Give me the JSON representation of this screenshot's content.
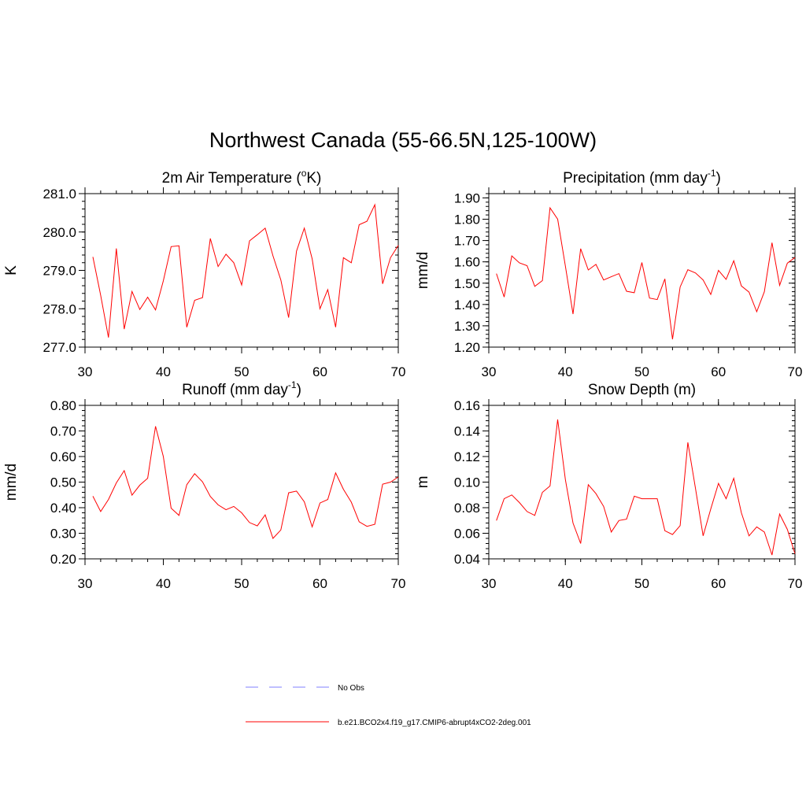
{
  "figure": {
    "title": "Northwest Canada (55-66.5N,125-100W)",
    "legend": [
      {
        "label": "No Obs",
        "color": "#9999ff",
        "style": "dashed"
      },
      {
        "label": "b.e21.BCO2x4.f19_g17.CMIP6-abrupt4xCO2-2deg.001",
        "color": "#ff0000",
        "style": "solid"
      }
    ]
  },
  "chart_data": [
    {
      "type": "line",
      "title": "2m Air Temperature (",
      "title_sup": "o",
      "title_tail": "K)",
      "ylabel": "K",
      "xlabel": "",
      "xlim": [
        30,
        70
      ],
      "ylim": [
        277.0,
        281.0
      ],
      "xticks": [
        30,
        40,
        50,
        60,
        70
      ],
      "yticks": [
        277.0,
        278.0,
        279.0,
        280.0,
        281.0
      ],
      "ytick_labels": [
        "277.0",
        "278.0",
        "279.0",
        "280.0",
        "281.0"
      ],
      "yminor": 0.2,
      "series": [
        {
          "name": "b.e21.BCO2x4.f19_g17.CMIP6-abrupt4xCO2-2deg.001",
          "color": "#ff0000",
          "x": [
            31,
            32,
            33,
            34,
            35,
            36,
            37,
            38,
            39,
            40,
            41,
            42,
            43,
            44,
            45,
            46,
            47,
            48,
            49,
            50,
            51,
            52,
            53,
            54,
            55,
            56,
            57,
            58,
            59,
            60,
            61,
            62,
            63,
            64,
            65,
            66,
            67,
            68,
            69,
            70
          ],
          "values": [
            279.35,
            278.35,
            277.25,
            279.57,
            277.47,
            278.45,
            277.98,
            278.3,
            277.97,
            278.73,
            279.62,
            279.64,
            277.52,
            278.22,
            278.29,
            279.83,
            279.1,
            279.42,
            279.2,
            278.62,
            279.77,
            279.93,
            280.1,
            279.38,
            278.75,
            277.77,
            279.5,
            280.1,
            279.3,
            278.0,
            278.5,
            277.52,
            279.33,
            279.2,
            280.19,
            280.28,
            280.71,
            278.65,
            279.33,
            279.65
          ]
        }
      ]
    },
    {
      "type": "line",
      "title": "Precipitation (mm day",
      "title_sup": "-1",
      "title_tail": ")",
      "ylabel": "mm/d",
      "xlabel": "",
      "xlim": [
        30,
        70
      ],
      "ylim": [
        1.2,
        1.92
      ],
      "xticks": [
        30,
        40,
        50,
        60,
        70
      ],
      "yticks": [
        1.2,
        1.3,
        1.4,
        1.5,
        1.6,
        1.7,
        1.8,
        1.9
      ],
      "ytick_labels": [
        "1.20",
        "1.30",
        "1.40",
        "1.50",
        "1.60",
        "1.70",
        "1.80",
        "1.90"
      ],
      "yminor": 0.02,
      "series": [
        {
          "name": "b.e21.BCO2x4.f19_g17.CMIP6-abrupt4xCO2-2deg.001",
          "color": "#ff0000",
          "x": [
            31,
            32,
            33,
            34,
            35,
            36,
            37,
            38,
            39,
            40,
            41,
            42,
            43,
            44,
            45,
            46,
            47,
            48,
            49,
            50,
            51,
            52,
            53,
            54,
            55,
            56,
            57,
            58,
            59,
            60,
            61,
            62,
            63,
            64,
            65,
            66,
            67,
            68,
            69,
            70
          ],
          "values": [
            1.545,
            1.435,
            1.628,
            1.595,
            1.582,
            1.485,
            1.512,
            1.853,
            1.8,
            1.58,
            1.355,
            1.662,
            1.562,
            1.588,
            1.515,
            1.53,
            1.545,
            1.462,
            1.455,
            1.597,
            1.43,
            1.423,
            1.52,
            1.237,
            1.482,
            1.563,
            1.548,
            1.515,
            1.447,
            1.56,
            1.518,
            1.605,
            1.487,
            1.458,
            1.366,
            1.46,
            1.69,
            1.49,
            1.594,
            1.62
          ]
        }
      ]
    },
    {
      "type": "line",
      "title": "Runoff (mm day",
      "title_sup": "-1",
      "title_tail": ")",
      "ylabel": "mm/d",
      "xlabel": "",
      "xlim": [
        30,
        70
      ],
      "ylim": [
        0.2,
        0.8
      ],
      "xticks": [
        30,
        40,
        50,
        60,
        70
      ],
      "yticks": [
        0.2,
        0.3,
        0.4,
        0.5,
        0.6,
        0.7,
        0.8
      ],
      "ytick_labels": [
        "0.20",
        "0.30",
        "0.40",
        "0.50",
        "0.60",
        "0.70",
        "0.80"
      ],
      "yminor": 0.02,
      "series": [
        {
          "name": "b.e21.BCO2x4.f19_g17.CMIP6-abrupt4xCO2-2deg.001",
          "color": "#ff0000",
          "x": [
            31,
            32,
            33,
            34,
            35,
            36,
            37,
            38,
            39,
            40,
            41,
            42,
            43,
            44,
            45,
            46,
            47,
            48,
            49,
            50,
            51,
            52,
            53,
            54,
            55,
            56,
            57,
            58,
            59,
            60,
            61,
            62,
            63,
            64,
            65,
            66,
            67,
            68,
            69,
            70
          ],
          "values": [
            0.445,
            0.385,
            0.432,
            0.497,
            0.545,
            0.449,
            0.488,
            0.515,
            0.718,
            0.6,
            0.398,
            0.37,
            0.49,
            0.533,
            0.501,
            0.444,
            0.411,
            0.392,
            0.405,
            0.38,
            0.342,
            0.329,
            0.372,
            0.28,
            0.313,
            0.458,
            0.465,
            0.423,
            0.325,
            0.418,
            0.432,
            0.536,
            0.472,
            0.422,
            0.345,
            0.327,
            0.335,
            0.492,
            0.5,
            0.52
          ]
        }
      ]
    },
    {
      "type": "line",
      "title": "Snow Depth (m)",
      "title_sup": "",
      "title_tail": "",
      "ylabel": "m",
      "xlabel": "",
      "xlim": [
        30,
        70
      ],
      "ylim": [
        0.04,
        0.16
      ],
      "xticks": [
        30,
        40,
        50,
        60,
        70
      ],
      "yticks": [
        0.04,
        0.06,
        0.08,
        0.1,
        0.12,
        0.14,
        0.16
      ],
      "ytick_labels": [
        "0.04",
        "0.06",
        "0.08",
        "0.10",
        "0.12",
        "0.14",
        "0.16"
      ],
      "yminor": 0.004,
      "series": [
        {
          "name": "b.e21.BCO2x4.f19_g17.CMIP6-abrupt4xCO2-2deg.001",
          "color": "#ff0000",
          "x": [
            31,
            32,
            33,
            34,
            35,
            36,
            37,
            38,
            39,
            40,
            41,
            42,
            43,
            44,
            45,
            46,
            47,
            48,
            49,
            50,
            51,
            52,
            53,
            54,
            55,
            56,
            57,
            58,
            59,
            60,
            61,
            62,
            63,
            64,
            65,
            66,
            67,
            68,
            69,
            70
          ],
          "values": [
            0.07,
            0.087,
            0.09,
            0.084,
            0.077,
            0.074,
            0.092,
            0.097,
            0.149,
            0.102,
            0.068,
            0.052,
            0.098,
            0.091,
            0.081,
            0.061,
            0.07,
            0.071,
            0.089,
            0.087,
            0.087,
            0.087,
            0.062,
            0.059,
            0.066,
            0.131,
            0.095,
            0.058,
            0.079,
            0.099,
            0.087,
            0.103,
            0.076,
            0.058,
            0.065,
            0.061,
            0.043,
            0.075,
            0.063,
            0.044
          ]
        }
      ]
    }
  ]
}
